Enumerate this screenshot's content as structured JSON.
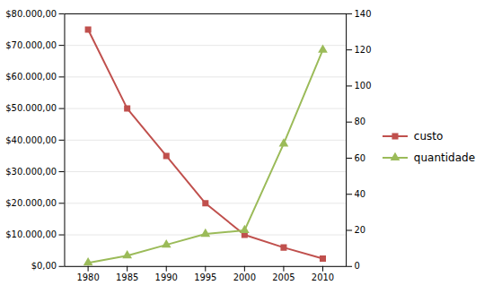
{
  "chart_data": {
    "type": "line",
    "x": [
      1980,
      1985,
      1990,
      1995,
      2000,
      2005,
      2010
    ],
    "xlim": [
      1977,
      2013
    ],
    "xticks": [
      1980,
      1985,
      1990,
      1995,
      2000,
      2005,
      2010
    ],
    "ylim": [
      0,
      80000
    ],
    "yticks": [
      {
        "value": 0,
        "label": "$0,00"
      },
      {
        "value": 10000,
        "label": "$10.000,00"
      },
      {
        "value": 20000,
        "label": "$20.000,00"
      },
      {
        "value": 30000,
        "label": "$30.000,00"
      },
      {
        "value": 40000,
        "label": "$40.000,00"
      },
      {
        "value": 50000,
        "label": "$50.000,00"
      },
      {
        "value": 60000,
        "label": "$60.000,00"
      },
      {
        "value": 70000,
        "label": "$70.000,00"
      },
      {
        "value": 80000,
        "label": "$80.000,00"
      }
    ],
    "y2lim": [
      0,
      140
    ],
    "y2ticks": [
      0,
      20,
      40,
      60,
      80,
      100,
      120,
      140
    ],
    "grid": "y",
    "legend": "right",
    "series": [
      {
        "name": "custo",
        "color": "#C0504D",
        "marker": "square",
        "values": [
          75000,
          50000,
          35000,
          20000,
          10000,
          6000,
          2500
        ]
      },
      {
        "name": "quantidade",
        "color": "#9BBB59",
        "marker": "triangle",
        "axis": "y2",
        "values": [
          2,
          6,
          12,
          18,
          20,
          68,
          120
        ]
      }
    ]
  }
}
